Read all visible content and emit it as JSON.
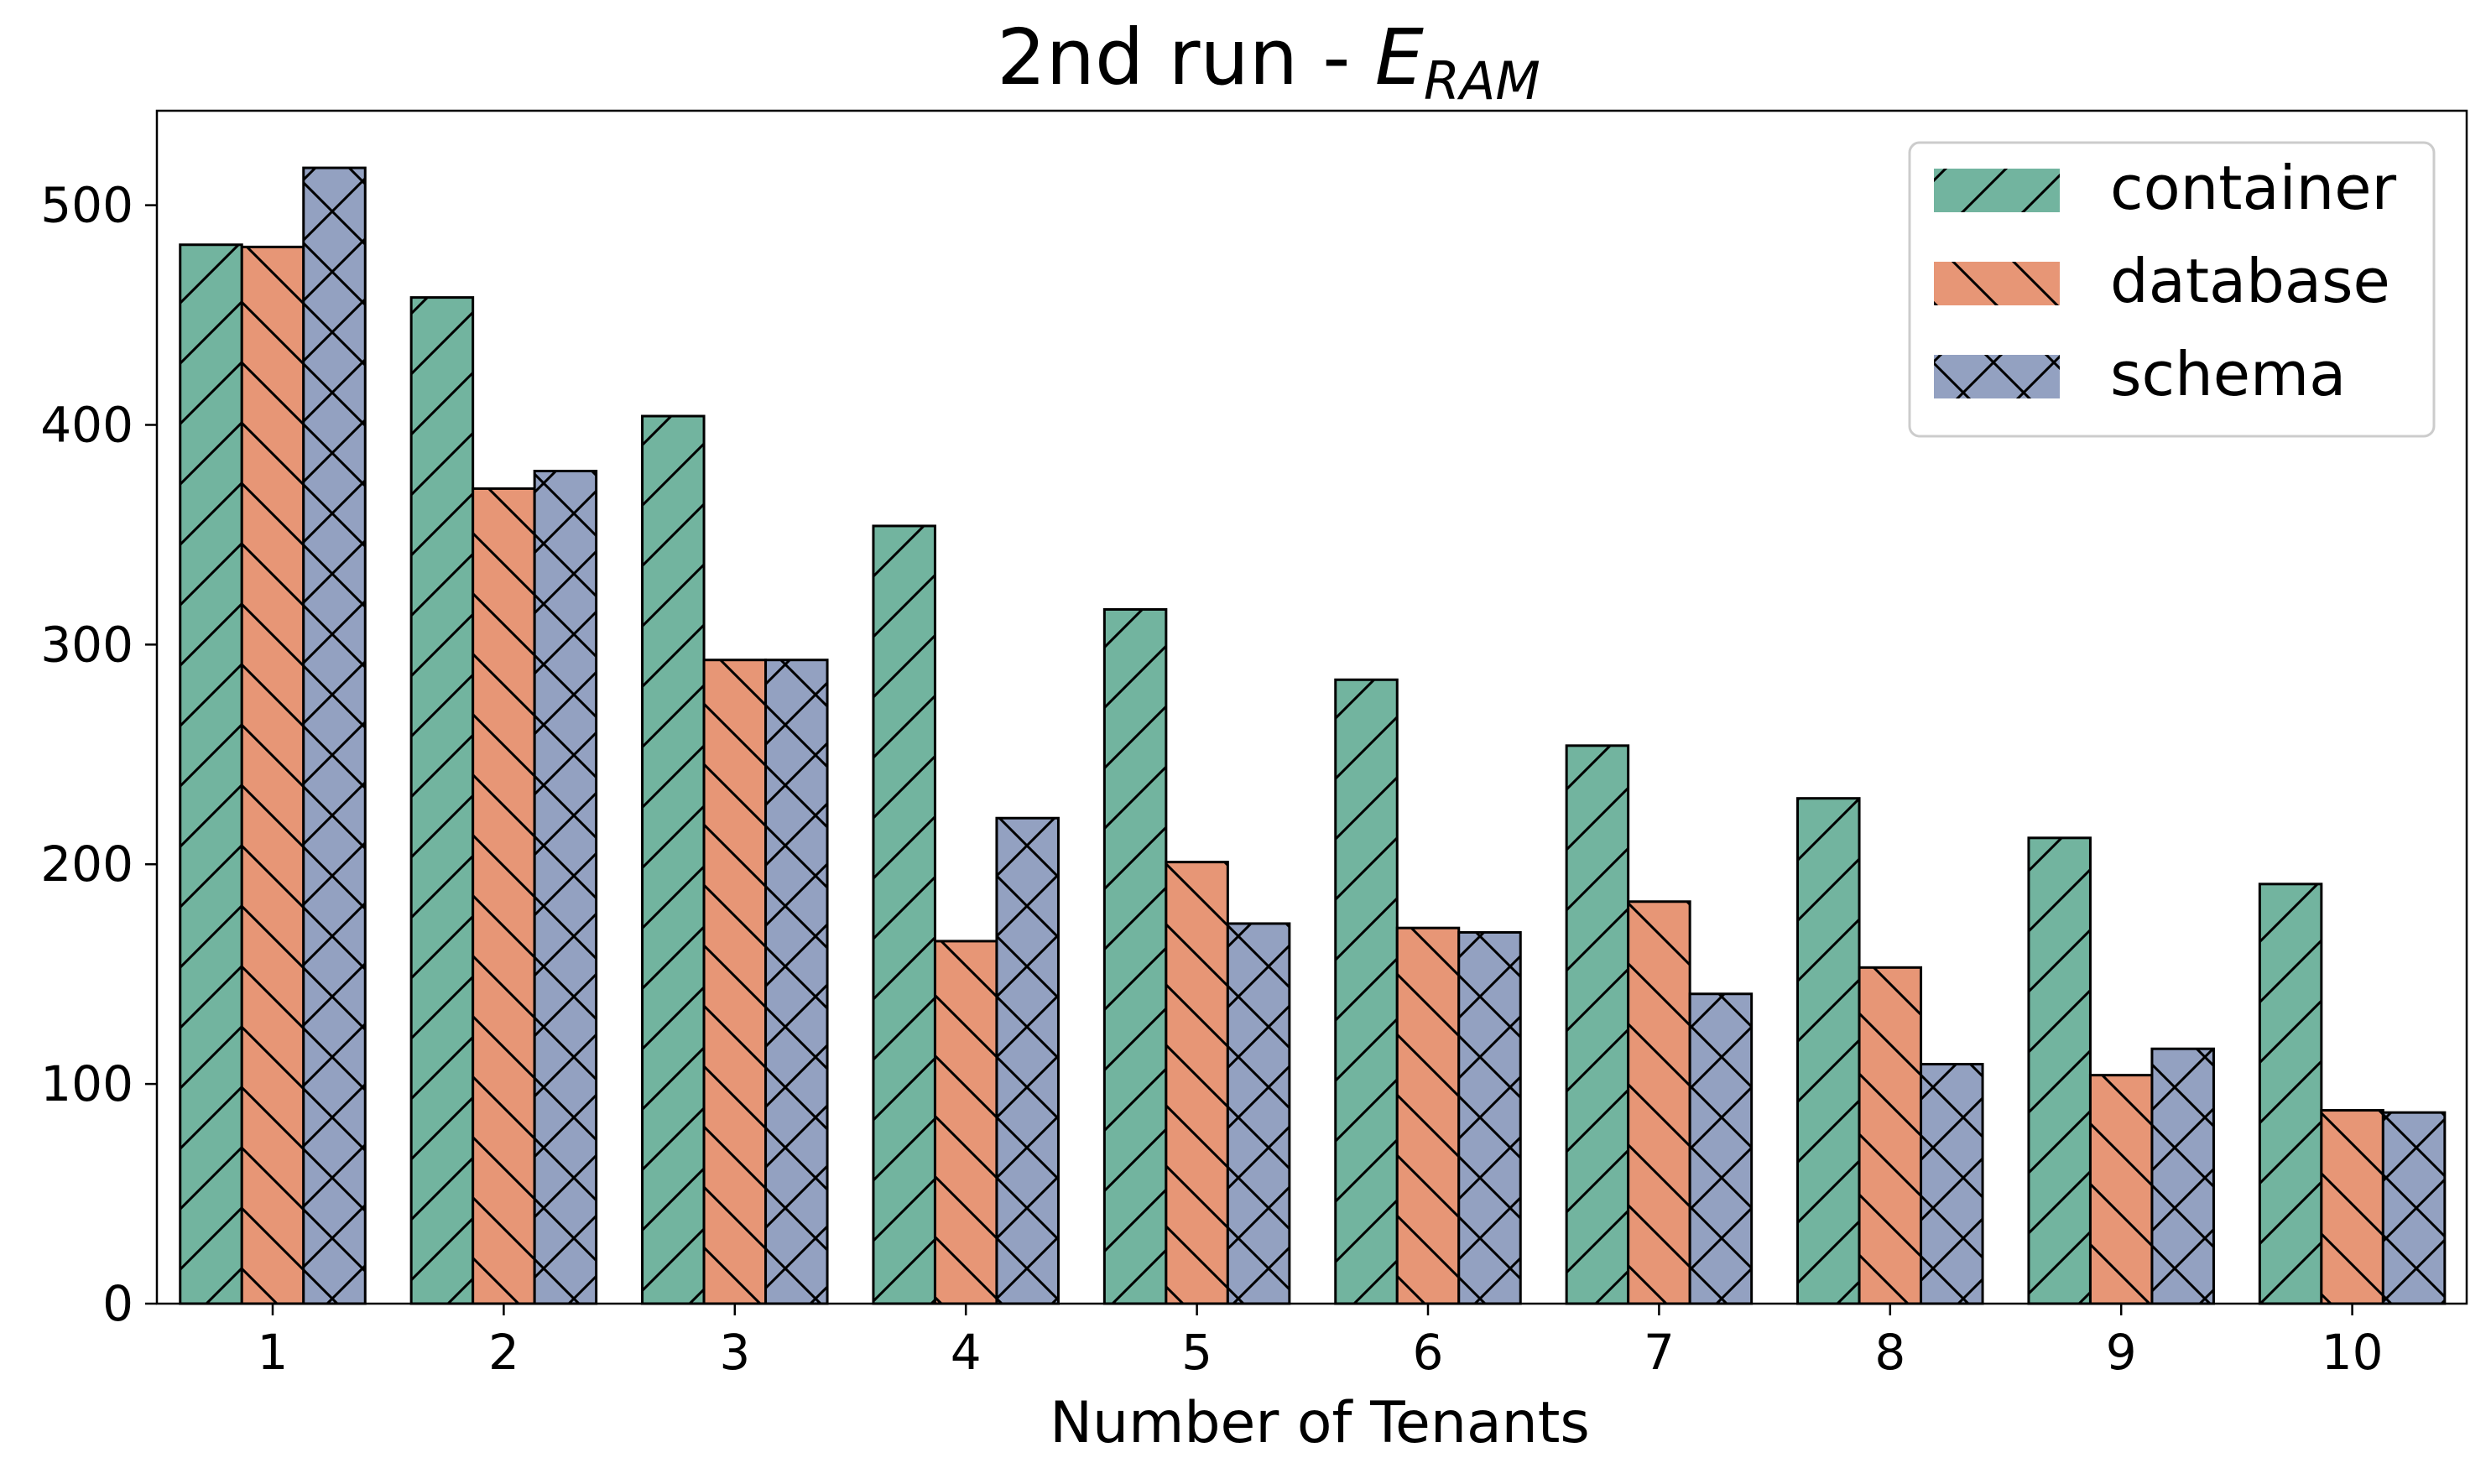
{
  "chart_data": {
    "type": "bar",
    "title": "2nd run - ",
    "title_math": {
      "base": "E",
      "subscript": "RAM"
    },
    "xlabel": "Number of Tenants",
    "ylabel": "",
    "categories": [
      "1",
      "2",
      "3",
      "4",
      "5",
      "6",
      "7",
      "8",
      "9",
      "10"
    ],
    "ylim": [
      0,
      543
    ],
    "yticks": [
      0,
      100,
      200,
      300,
      400,
      500
    ],
    "legend_position": "top-right",
    "grid": false,
    "series": [
      {
        "name": "container",
        "color": "#72b49f",
        "hatch": "/",
        "values": [
          482,
          458,
          404,
          354,
          316,
          284,
          254,
          230,
          212,
          191
        ]
      },
      {
        "name": "database",
        "color": "#e79676",
        "hatch": "\\",
        "values": [
          481,
          371,
          293,
          165,
          201,
          171,
          183,
          153,
          104,
          88
        ]
      },
      {
        "name": "schema",
        "color": "#93a1c1",
        "hatch": "x",
        "values": [
          517,
          379,
          293,
          221,
          173,
          169,
          141,
          109,
          116,
          87
        ]
      }
    ]
  }
}
